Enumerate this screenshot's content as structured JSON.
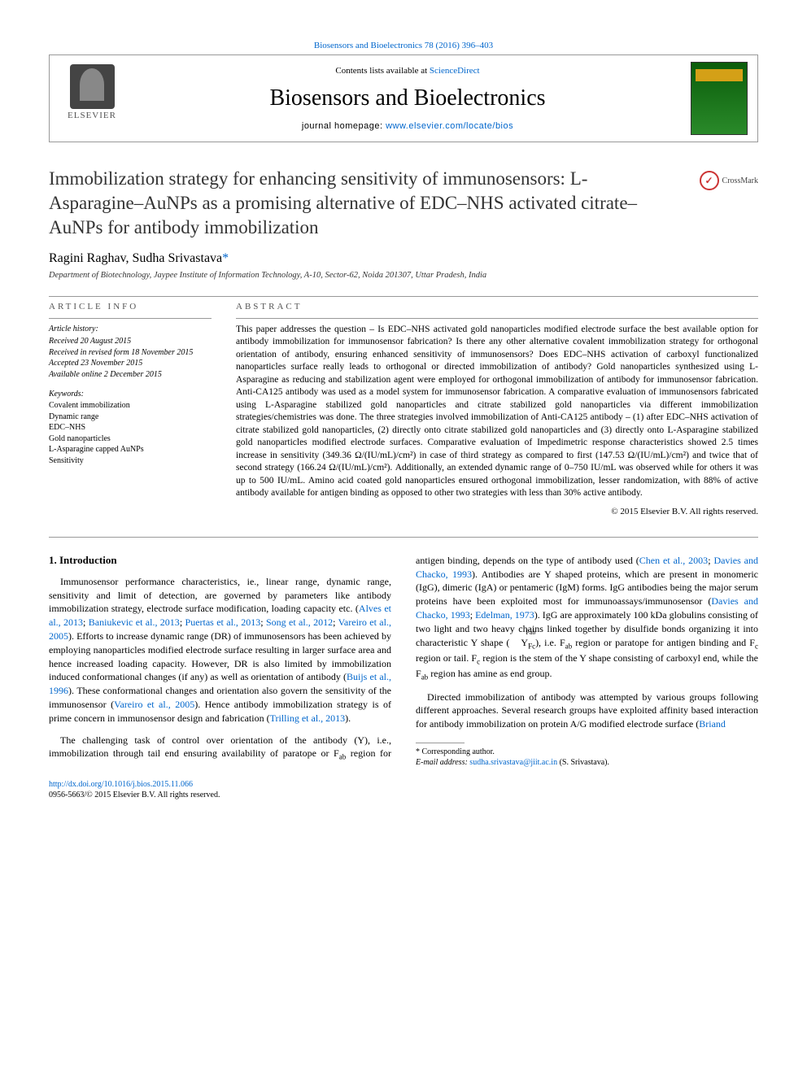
{
  "journal_header": {
    "top_link_prefix": "Biosensors and Bioelectronics 78 (2016) 396–403",
    "contents_prefix": "Contents lists available at ",
    "contents_link": "ScienceDirect",
    "journal_name": "Biosensors and Bioelectronics",
    "homepage_prefix": "journal homepage: ",
    "homepage_url": "www.elsevier.com/locate/bios",
    "elsevier_label": "ELSEVIER"
  },
  "crossmark": {
    "label": "CrossMark"
  },
  "article": {
    "title": "Immobilization strategy for enhancing sensitivity of immunosensors: L-Asparagine–AuNPs as a promising alternative of EDC–NHS activated citrate–AuNPs for antibody immobilization",
    "authors": "Ragini Raghav, Sudha Srivastava",
    "star": "*",
    "affiliation": "Department of Biotechnology, Jaypee Institute of Information Technology, A-10, Sector-62, Noida 201307, Uttar Pradesh, India"
  },
  "info": {
    "heading": "article info",
    "history_label": "Article history:",
    "received": "Received 20 August 2015",
    "revised": "Received in revised form 18 November 2015",
    "accepted": "Accepted 23 November 2015",
    "online": "Available online 2 December 2015",
    "keywords_label": "Keywords:",
    "keywords": [
      "Covalent immobilization",
      "Dynamic range",
      "EDC–NHS",
      "Gold nanoparticles",
      "L-Asparagine capped AuNPs",
      "Sensitivity"
    ]
  },
  "abstract": {
    "heading": "abstract",
    "text": "This paper addresses the question – Is EDC–NHS activated gold nanoparticles modified electrode surface the best available option for antibody immobilization for immunosensor fabrication? Is there any other alternative covalent immobilization strategy for orthogonal orientation of antibody, ensuring enhanced sensitivity of immunosensors? Does EDC–NHS activation of carboxyl functionalized nanoparticles surface really leads to orthogonal or directed immobilization of antibody? Gold nanoparticles synthesized using L-Asparagine as reducing and stabilization agent were employed for orthogonal immobilization of antibody for immunosensor fabrication. Anti-CA125 antibody was used as a model system for immunosensor fabrication. A comparative evaluation of immunosensors fabricated using L-Asparagine stabilized gold nanoparticles and citrate stabilized gold nanoparticles via different immobilization strategies/chemistries was done. The three strategies involved immobilization of Anti-CA125 antibody – (1) after EDC–NHS activation of citrate stabilized gold nanoparticles, (2) directly onto citrate stabilized gold nanoparticles and (3) directly onto L-Asparagine stabilized gold nanoparticles modified electrode surfaces. Comparative evaluation of Impedimetric response characteristics showed 2.5 times increase in sensitivity (349.36 Ω/(IU/mL)/cm²) in case of third strategy as compared to first (147.53 Ω/(IU/mL)/cm²) and twice that of second strategy (166.24 Ω/(IU/mL)/cm²). Additionally, an extended dynamic range of 0–750 IU/mL was observed while for others it was up to 500 IU/mL. Amino acid coated gold nanoparticles ensured orthogonal immobilization, lesser randomization, with 88% of active antibody available for antigen binding as opposed to other two strategies with less than 30% active antibody.",
    "copyright": "© 2015 Elsevier B.V. All rights reserved."
  },
  "body": {
    "intro_heading": "1. Introduction",
    "para1_pre": "Immunosensor performance characteristics, ie., linear range, dynamic range, sensitivity and limit of detection, are governed by parameters like antibody immobilization strategy, electrode surface modification, loading capacity etc. (",
    "para1_refs": [
      "Alves et al., 2013",
      "Baniukevic et al., 2013",
      "Puertas et al., 2013",
      "Song et al., 2012",
      "Vareiro et al., 2005"
    ],
    "para1_post": "). Efforts to increase dynamic range (DR) of immunosensors has been achieved by employing nanoparticles modified electrode surface resulting in larger surface area and hence increased loading capacity. However, DR is also limited by immobilization induced conformational changes (if any) as well as orientation of antibody (",
    "para1_ref2": "Buijs et al., 1996",
    "para1_post2": "). These conformational changes and orientation also govern the sensitivity of the immunosensor (",
    "para1_ref3": "Vareiro et al., 2005",
    "para1_post3": "). Hence antibody immobilization strategy is of prime concern in immunosensor design and ",
    "para1_col2_pre": "fabrication (",
    "para1_col2_ref": "Trilling et al., 2013",
    "para1_col2_post": ").",
    "para2_pre": "The challenging task of control over orientation of the antibody (Y), i.e., immobilization through tail end ensuring availability of paratope or F",
    "para2_ab": "ab",
    "para2_mid1": " region for antigen binding, depends on the type of antibody used (",
    "para2_refs": [
      "Chen et al., 2003",
      "Davies and Chacko, 1993"
    ],
    "para2_mid2": "). Antibodies are Y shaped proteins, which are present in monomeric (IgG), dimeric (IgA) or pentameric (IgM) forms. IgG antibodies being the major serum proteins have been exploited most for immunoassays/immunosensor (",
    "para2_refs2": [
      "Davies and Chacko, 1993",
      "Edelman, 1973"
    ],
    "para2_mid3": "). IgG are approximately 100 kDa globulins consisting of two light and two heavy chains linked together by disulfide bonds organizing it into characteristic Y shape (",
    "para2_yshape_top": "Fab",
    "para2_yshape_body": "Y",
    "para2_yshape_bottom": "Fc",
    "para2_mid4": "), i.e. F",
    "para2_mid5": " region or paratope for antigen binding and F",
    "para2_c": "c",
    "para2_mid6": " region or tail. F",
    "para2_mid7": " region is the stem of the Y shape consisting of carboxyl end, while the F",
    "para2_mid8": " region has amine as end group.",
    "para3_pre": "Directed immobilization of antibody was attempted by various groups following different approaches. Several research groups have exploited affinity based interaction for antibody immobilization on protein A/G modified electrode surface (",
    "para3_ref": "Briand"
  },
  "footnote": {
    "corr_label": "* Corresponding author.",
    "email_label": "E-mail address: ",
    "email": "sudha.srivastava@jiit.ac.in",
    "email_suffix": " (S. Srivastava).",
    "doi_url": "http://dx.doi.org/10.1016/j.bios.2015.11.066",
    "issn_line": "0956-5663/© 2015 Elsevier B.V. All rights reserved."
  },
  "colors": {
    "link": "#0066cc",
    "text": "#000000",
    "rule": "#999999"
  }
}
